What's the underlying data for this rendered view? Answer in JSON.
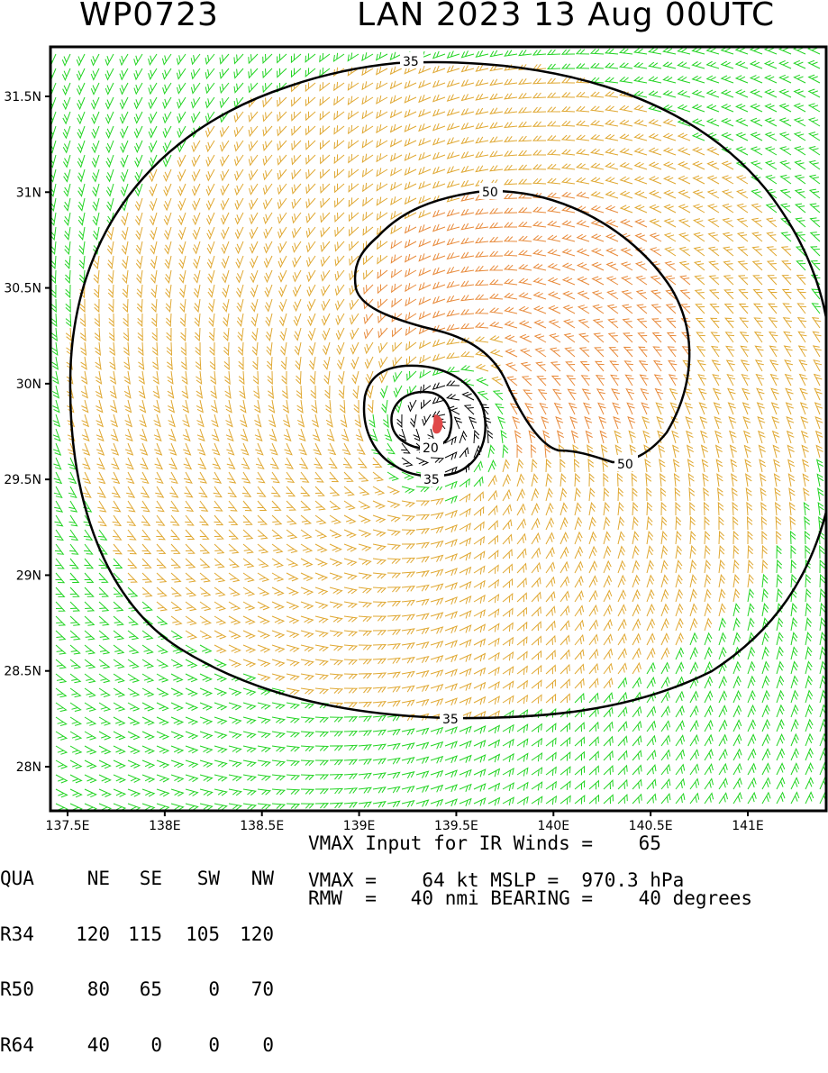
{
  "header": {
    "storm_id": "WP0723",
    "storm_line": "LAN 2023 13 Aug 00UTC"
  },
  "map": {
    "lat_ticks": [
      "31.5N",
      "31N",
      "30.5N",
      "30N",
      "29.5N",
      "29N",
      "28.5N",
      "28N"
    ],
    "lon_ticks": [
      "137.5E",
      "138E",
      "138.5E",
      "139E",
      "139.5E",
      "140E",
      "140.5E",
      "141E"
    ],
    "contour_labels": {
      "outer_top": "35",
      "outer_bottom": "35",
      "r50_top": "50",
      "r50_bottom": "50",
      "inner_35": "35",
      "inner_20": "20"
    },
    "colors": {
      "band_35_50": "#e0a832",
      "band_50_plus": "#e88a3a",
      "band_lt_35": "#22d422",
      "inner_barbs": "#000000",
      "center_marker": "#e04848",
      "contour": "#000000"
    },
    "center": {
      "lat": 29.76,
      "lon": 139.43
    }
  },
  "table": {
    "headers": [
      "QUA",
      "NE",
      "SE",
      "SW",
      "NW"
    ],
    "rows": [
      [
        "R34",
        "120",
        "115",
        "105",
        "120"
      ],
      [
        "R50",
        "80",
        "65",
        "0",
        "70"
      ],
      [
        "R64",
        "40",
        "0",
        "0",
        "0"
      ]
    ]
  },
  "info": {
    "line1": "VMAX Input for IR Winds =    65",
    "line2": "VMAX =    64 kt MSLP =  970.3 hPa",
    "line3": "RMW  =   40 nmi BEARING =    40 degrees"
  }
}
